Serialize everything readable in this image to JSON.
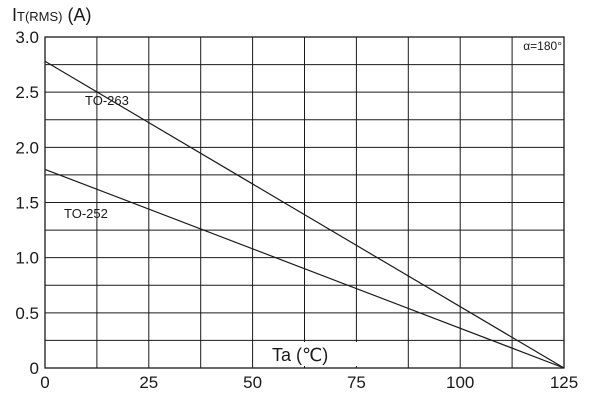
{
  "chart_data": {
    "type": "line",
    "ylabel": "IT(RMS) (A)",
    "ylabel_main": "I",
    "ylabel_sub": "T(RMS)",
    "ylabel_unit": " (A)",
    "xlabel": "Ta (℃)",
    "annotation": "α=180°",
    "xlim": [
      0,
      125
    ],
    "ylim": [
      0,
      3.0
    ],
    "x_ticks": [
      "0",
      "25",
      "50",
      "75",
      "100",
      "125"
    ],
    "y_ticks": [
      "0",
      "0.5",
      "1.0",
      "1.5",
      "2.0",
      "2.5",
      "3.0"
    ],
    "grid": true,
    "series": [
      {
        "name": "TO-263",
        "x": [
          0,
          125
        ],
        "y": [
          2.78,
          0
        ]
      },
      {
        "name": "TO-252",
        "x": [
          0,
          125
        ],
        "y": [
          1.8,
          0
        ]
      }
    ]
  }
}
